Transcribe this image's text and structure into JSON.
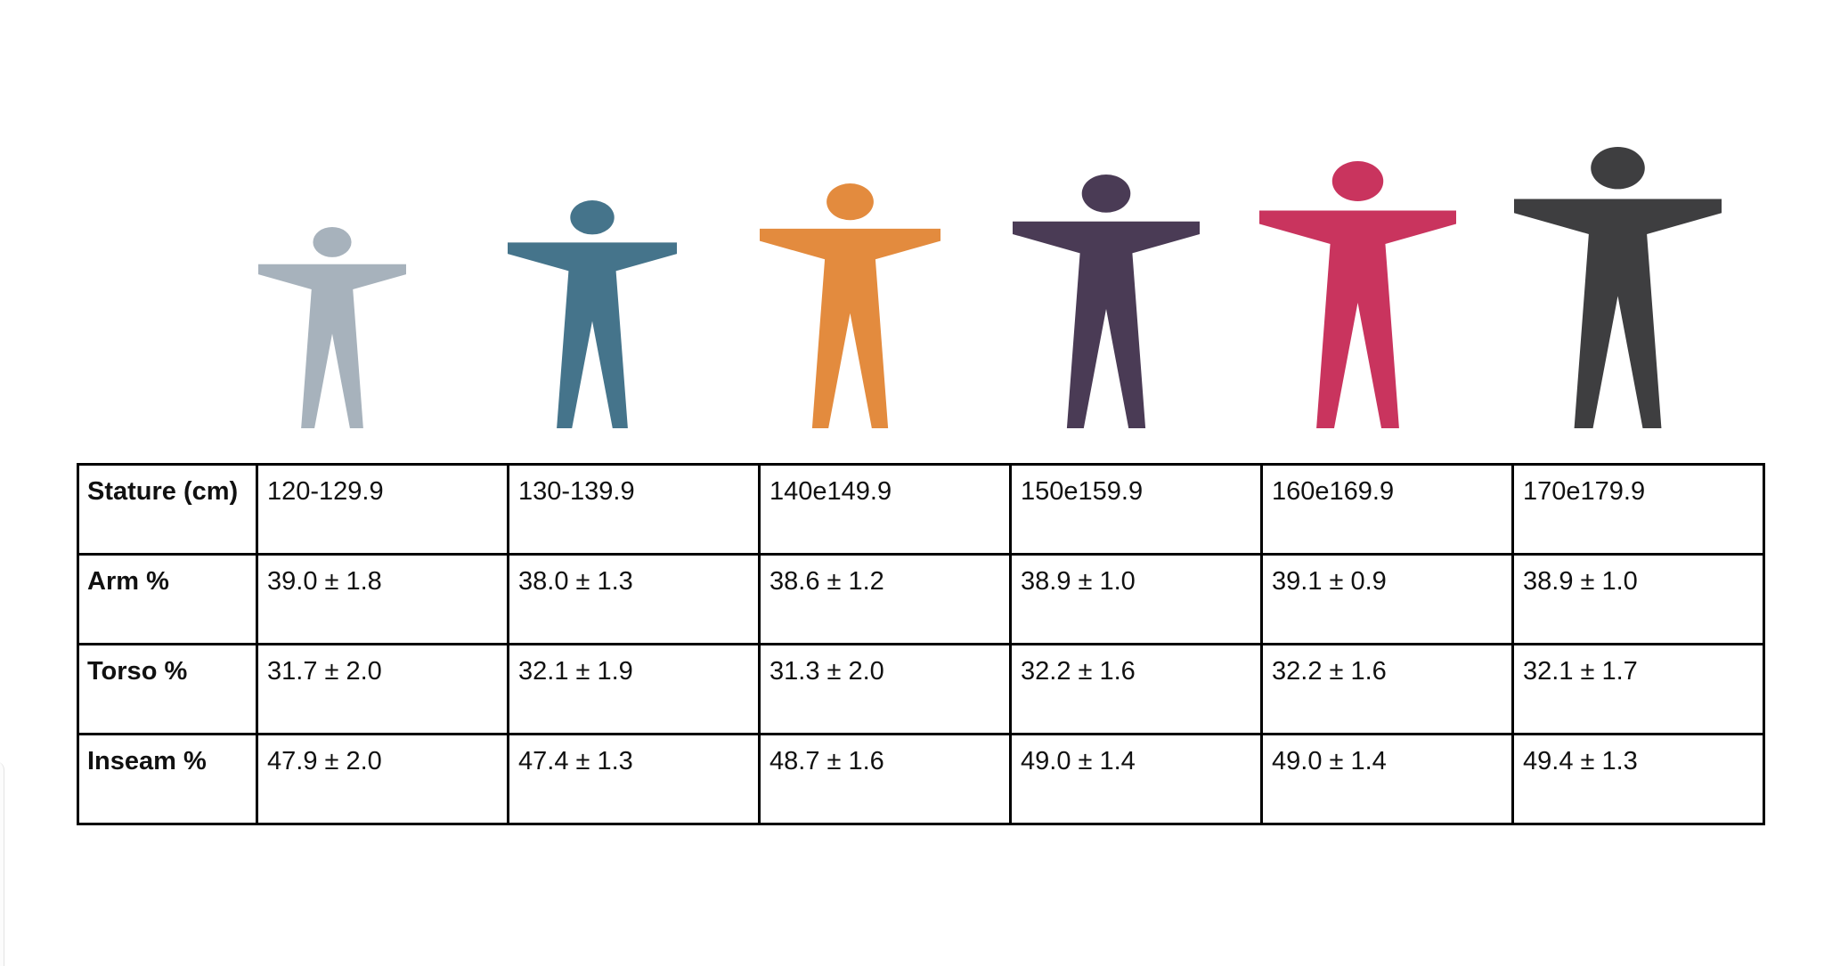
{
  "figures": [
    {
      "icon": "child-figure-icon",
      "color": "#a7b2bc"
    },
    {
      "icon": "child-figure-icon",
      "color": "#45748b"
    },
    {
      "icon": "child-figure-icon",
      "color": "#e38b3e"
    },
    {
      "icon": "child-figure-icon",
      "color": "#4a3b55"
    },
    {
      "icon": "child-figure-icon",
      "color": "#c9345e"
    },
    {
      "icon": "child-figure-icon",
      "color": "#3e3e40"
    }
  ],
  "table": {
    "rows": [
      {
        "label": "Stature (cm)",
        "cells": [
          "120-129.9",
          "130-139.9",
          "140e149.9",
          "150e159.9",
          "160e169.9",
          "170e179.9"
        ]
      },
      {
        "label": "Arm %",
        "cells": [
          "39.0 ± 1.8",
          "38.0 ± 1.3",
          "38.6 ± 1.2",
          "38.9 ± 1.0",
          "39.1 ± 0.9",
          "38.9 ± 1.0"
        ]
      },
      {
        "label": "Torso %",
        "cells": [
          "31.7 ± 2.0",
          "32.1 ± 1.9",
          "31.3 ± 2.0",
          "32.2 ± 1.6",
          "32.2 ± 1.6",
          "32.1 ± 1.7"
        ]
      },
      {
        "label": "Inseam %",
        "cells": [
          "47.9 ± 2.0",
          "47.4 ± 1.3",
          "48.7 ± 1.6",
          "49.0 ± 1.4",
          "49.0 ± 1.4",
          "49.4 ± 1.3"
        ]
      }
    ]
  }
}
